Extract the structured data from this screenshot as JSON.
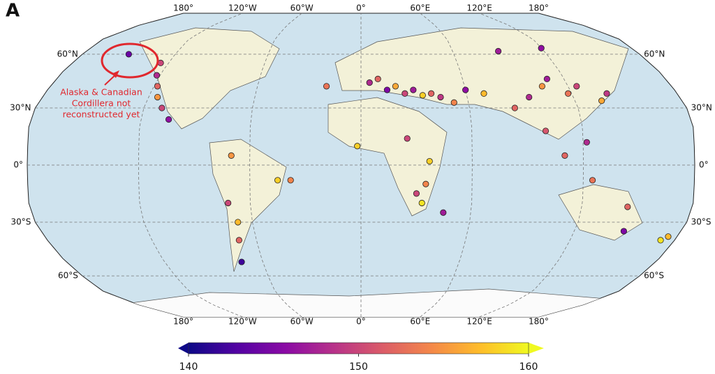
{
  "panel_label": "A",
  "annotation": [
    "Alaska & Canadian",
    "Cordillera not",
    "reconstructed yet"
  ],
  "lonticks": [
    {
      "value": -180,
      "label": "180°"
    },
    {
      "value": -120,
      "label": "120°W"
    },
    {
      "value": -60,
      "label": "60°W"
    },
    {
      "value": 0,
      "label": "0°"
    },
    {
      "value": 60,
      "label": "60°E"
    },
    {
      "value": 120,
      "label": "120°E"
    },
    {
      "value": 180,
      "label": "180°"
    }
  ],
  "latticks": [
    {
      "value": 60,
      "label": "60°N"
    },
    {
      "value": 30,
      "label": "30°N"
    },
    {
      "value": 0,
      "label": "0°"
    },
    {
      "value": -30,
      "label": "30°S"
    },
    {
      "value": -60,
      "label": "60°S"
    }
  ],
  "colorbar": {
    "colormap": "plasma",
    "lim": [
      140,
      160
    ],
    "ticks": [
      140,
      150,
      160
    ]
  },
  "points": {
    "lon": [
      -122,
      -118,
      -115,
      -110,
      -105,
      -125,
      -150,
      -70,
      -72,
      -68,
      -70,
      -73,
      -45,
      -38,
      -20,
      5,
      10,
      15,
      20,
      25,
      30,
      35,
      40,
      45,
      52,
      60,
      70,
      85,
      95,
      105,
      110,
      118,
      125,
      140,
      135,
      100,
      110,
      122,
      125,
      37,
      35,
      33,
      30,
      45,
      145,
      148,
      172,
      175,
      90,
      120,
      -2,
      25
    ],
    "lat": [
      48,
      42,
      36,
      30,
      24,
      55,
      60,
      5,
      -20,
      -30,
      -40,
      -52,
      -8,
      -8,
      42,
      44,
      46,
      40,
      42,
      38,
      40,
      37,
      38,
      36,
      33,
      40,
      38,
      30,
      36,
      42,
      46,
      38,
      42,
      38,
      34,
      18,
      5,
      12,
      -8,
      2,
      -10,
      -20,
      -15,
      -25,
      -22,
      -35,
      -40,
      -38,
      62,
      64,
      10,
      14
    ],
    "values": [
      148,
      152,
      155,
      150,
      146,
      150,
      144,
      155,
      150,
      157,
      152,
      142,
      158,
      154,
      153,
      148,
      152,
      145,
      156,
      150,
      147,
      158,
      152,
      149,
      154,
      146,
      157,
      152,
      148,
      155,
      147,
      153,
      150,
      149,
      156,
      151,
      152,
      148,
      153,
      158,
      154,
      159,
      150,
      147,
      152,
      145,
      159,
      157,
      147,
      146,
      158,
      150
    ]
  }
}
